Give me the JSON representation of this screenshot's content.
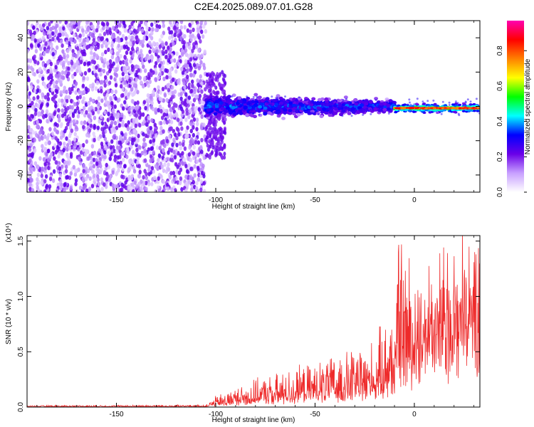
{
  "title": "C2E4.2025.089.07.01.G28",
  "chart_data": [
    {
      "type": "heatmap",
      "xlabel": "Height of straight line (km)",
      "ylabel": "Frequency (Hz)",
      "xlim": [
        -195,
        33
      ],
      "ylim": [
        -50,
        50
      ],
      "xticks": [
        -150,
        -100,
        -50,
        0
      ],
      "yticks": [
        -40,
        -20,
        0,
        20,
        40
      ],
      "colorbar": {
        "label": "Normalized spectral amplitude",
        "range": [
          0,
          0.97
        ],
        "ticks": [
          "0.0",
          "0.2",
          "0.4",
          "0.6",
          "0.8"
        ],
        "colors": [
          "#ffffff",
          "#c8a0ff",
          "#6a00e8",
          "#0000ff",
          "#00ffff",
          "#00ff00",
          "#ffff00",
          "#ff8000",
          "#ff0000",
          "#ff00b0"
        ]
      },
      "regions": [
        {
          "x_range": [
            -195,
            -105
          ],
          "description": "broadband noise",
          "amplitude": 0.1
        },
        {
          "x_range": [
            -105,
            -10
          ],
          "center_freq": 0,
          "half_width": 6,
          "amplitude": 0.25
        },
        {
          "x_range": [
            -10,
            33
          ],
          "center_freq": -1,
          "half_width": 2,
          "amplitude": 0.9
        }
      ]
    },
    {
      "type": "line",
      "xlabel": "Height of straight line (km)",
      "ylabel": "SNR (10 * v/v)",
      "multiplier": "(x10⁴)",
      "xlim": [
        -195,
        33
      ],
      "ylim": [
        0,
        1.55
      ],
      "xticks": [
        -150,
        -100,
        -50,
        0
      ],
      "yticks": [
        "0.0",
        "0.5",
        "1.0",
        "1.5"
      ],
      "series": [
        {
          "color": "#ee2a2a",
          "envelope": {
            "x": [
              -195,
              -105,
              -100,
              -80,
              -60,
              -40,
              -20,
              -10,
              -8,
              0,
              10,
              20,
              33
            ],
            "y_max": [
              0.015,
              0.02,
              0.1,
              0.25,
              0.35,
              0.45,
              0.6,
              1.0,
              1.52,
              1.3,
              1.4,
              1.5,
              1.52
            ],
            "y_base": [
              0.005,
              0.005,
              0.02,
              0.05,
              0.08,
              0.12,
              0.15,
              0.2,
              0.4,
              0.5,
              0.55,
              0.65,
              0.75
            ]
          }
        }
      ]
    }
  ]
}
